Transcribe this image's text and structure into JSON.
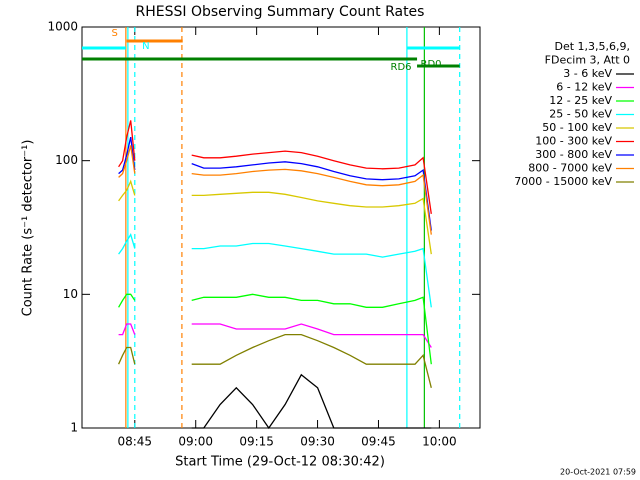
{
  "chart_data": {
    "type": "line",
    "title": "RHESSI Observing Summary Count Rates",
    "xlabel": "Start Time (29-Oct-12 08:30:42)",
    "ylabel": "Count Rate (s⁻¹ detector⁻¹)",
    "legend_header": [
      "Det 1,3,5,6,9,",
      "FDecim 3, Att 0"
    ],
    "footer": "20-Oct-2021 07:59",
    "yscale": "log",
    "legend": "right",
    "xlim": [
      2,
      100
    ],
    "xticks": [
      {
        "value": 15,
        "label": "08:45"
      },
      {
        "value": 30,
        "label": "09:00"
      },
      {
        "value": 45,
        "label": "09:15"
      },
      {
        "value": 60,
        "label": "09:30"
      },
      {
        "value": 75,
        "label": "09:45"
      },
      {
        "value": 90,
        "label": "10:00"
      }
    ],
    "ylim": [
      1,
      1000
    ],
    "yticks": [
      1,
      10,
      100,
      1000
    ],
    "x": [
      11,
      12,
      13,
      14,
      15,
      22,
      29,
      32,
      36,
      40,
      44,
      48,
      52,
      56,
      60,
      64,
      68,
      72,
      76,
      80,
      84,
      86,
      88
    ],
    "series": [
      {
        "name": "3 - 6 keV",
        "color": "#000000",
        "values": [
          null,
          null,
          null,
          null,
          null,
          null,
          1,
          1,
          1.5,
          2,
          1.5,
          1,
          1.5,
          2.5,
          2,
          1,
          1,
          1,
          1,
          1,
          1,
          1,
          1
        ]
      },
      {
        "name": "6 - 12 keV",
        "color": "#ff00ff",
        "values": [
          5,
          5,
          6,
          6,
          5,
          null,
          6,
          6,
          6,
          5.5,
          5.5,
          5.5,
          5.5,
          6,
          5.5,
          5,
          5,
          5,
          5,
          5,
          5,
          5,
          4
        ]
      },
      {
        "name": "12 - 25 keV",
        "color": "#00ff00",
        "values": [
          8,
          9,
          10,
          10,
          9,
          null,
          9,
          9.5,
          9.5,
          9.5,
          10,
          9.5,
          9.5,
          9,
          9,
          8.5,
          8.5,
          8,
          8,
          8.5,
          9,
          9.5,
          3
        ]
      },
      {
        "name": "25 - 50 keV",
        "color": "#00ffff",
        "values": [
          20,
          22,
          25,
          28,
          22,
          null,
          22,
          22,
          23,
          23,
          24,
          24,
          23,
          22,
          21,
          20,
          20,
          20,
          19,
          20,
          21,
          22,
          8
        ]
      },
      {
        "name": "50 - 100 keV",
        "color": "#d8c800",
        "values": [
          50,
          55,
          60,
          70,
          55,
          null,
          55,
          55,
          56,
          57,
          58,
          58,
          56,
          53,
          50,
          48,
          46,
          45,
          45,
          46,
          48,
          52,
          20
        ]
      },
      {
        "name": "100 - 300 keV",
        "color": "#ff0000",
        "values": [
          90,
          100,
          150,
          200,
          100,
          null,
          110,
          105,
          105,
          108,
          112,
          115,
          118,
          115,
          108,
          100,
          93,
          88,
          87,
          88,
          93,
          105,
          40
        ]
      },
      {
        "name": "300 - 800 keV",
        "color": "#0000ff",
        "values": [
          80,
          85,
          110,
          150,
          85,
          null,
          95,
          88,
          88,
          90,
          93,
          96,
          98,
          95,
          90,
          83,
          77,
          73,
          72,
          73,
          77,
          85,
          30
        ]
      },
      {
        "name": "800 - 7000 keV",
        "color": "#ff8000",
        "values": [
          75,
          80,
          100,
          130,
          80,
          null,
          80,
          78,
          78,
          80,
          83,
          85,
          86,
          84,
          80,
          75,
          70,
          66,
          65,
          66,
          70,
          78,
          28
        ]
      },
      {
        "name": "7000 - 15000 keV",
        "color": "#808000",
        "values": [
          3,
          3.5,
          4,
          4,
          3,
          null,
          3,
          3,
          3,
          3.5,
          4,
          4.5,
          5,
          5,
          4.5,
          4,
          3.5,
          3,
          3,
          3,
          3,
          3.5,
          2
        ]
      }
    ],
    "state_bars": [
      {
        "label": "S",
        "color": "#ff8000",
        "ranges": [
          [
            13,
            26.8
          ]
        ]
      },
      {
        "label": "N",
        "color": "#00ffff",
        "ranges": [
          [
            2,
            12.8
          ],
          [
            82,
            95
          ]
        ]
      },
      {
        "label": "RD6",
        "color": "#008000",
        "ranges": [
          [
            2,
            84.5
          ]
        ]
      },
      {
        "label": "RD0",
        "color": "#008000",
        "ranges": [
          [
            84.5,
            95
          ]
        ]
      }
    ],
    "markers": [
      {
        "x": 12.8,
        "color": "#ff8000",
        "style": "solid"
      },
      {
        "x": 13.3,
        "color": "#00ffff",
        "style": "solid"
      },
      {
        "x": 15,
        "color": "#00ffff",
        "style": "dashed"
      },
      {
        "x": 26.6,
        "color": "#ff8000",
        "style": "dashed"
      },
      {
        "x": 82,
        "color": "#00ffff",
        "style": "solid"
      },
      {
        "x": 86.3,
        "color": "#00c000",
        "style": "solid"
      },
      {
        "x": 95,
        "color": "#00ffff",
        "style": "dashed"
      }
    ]
  }
}
